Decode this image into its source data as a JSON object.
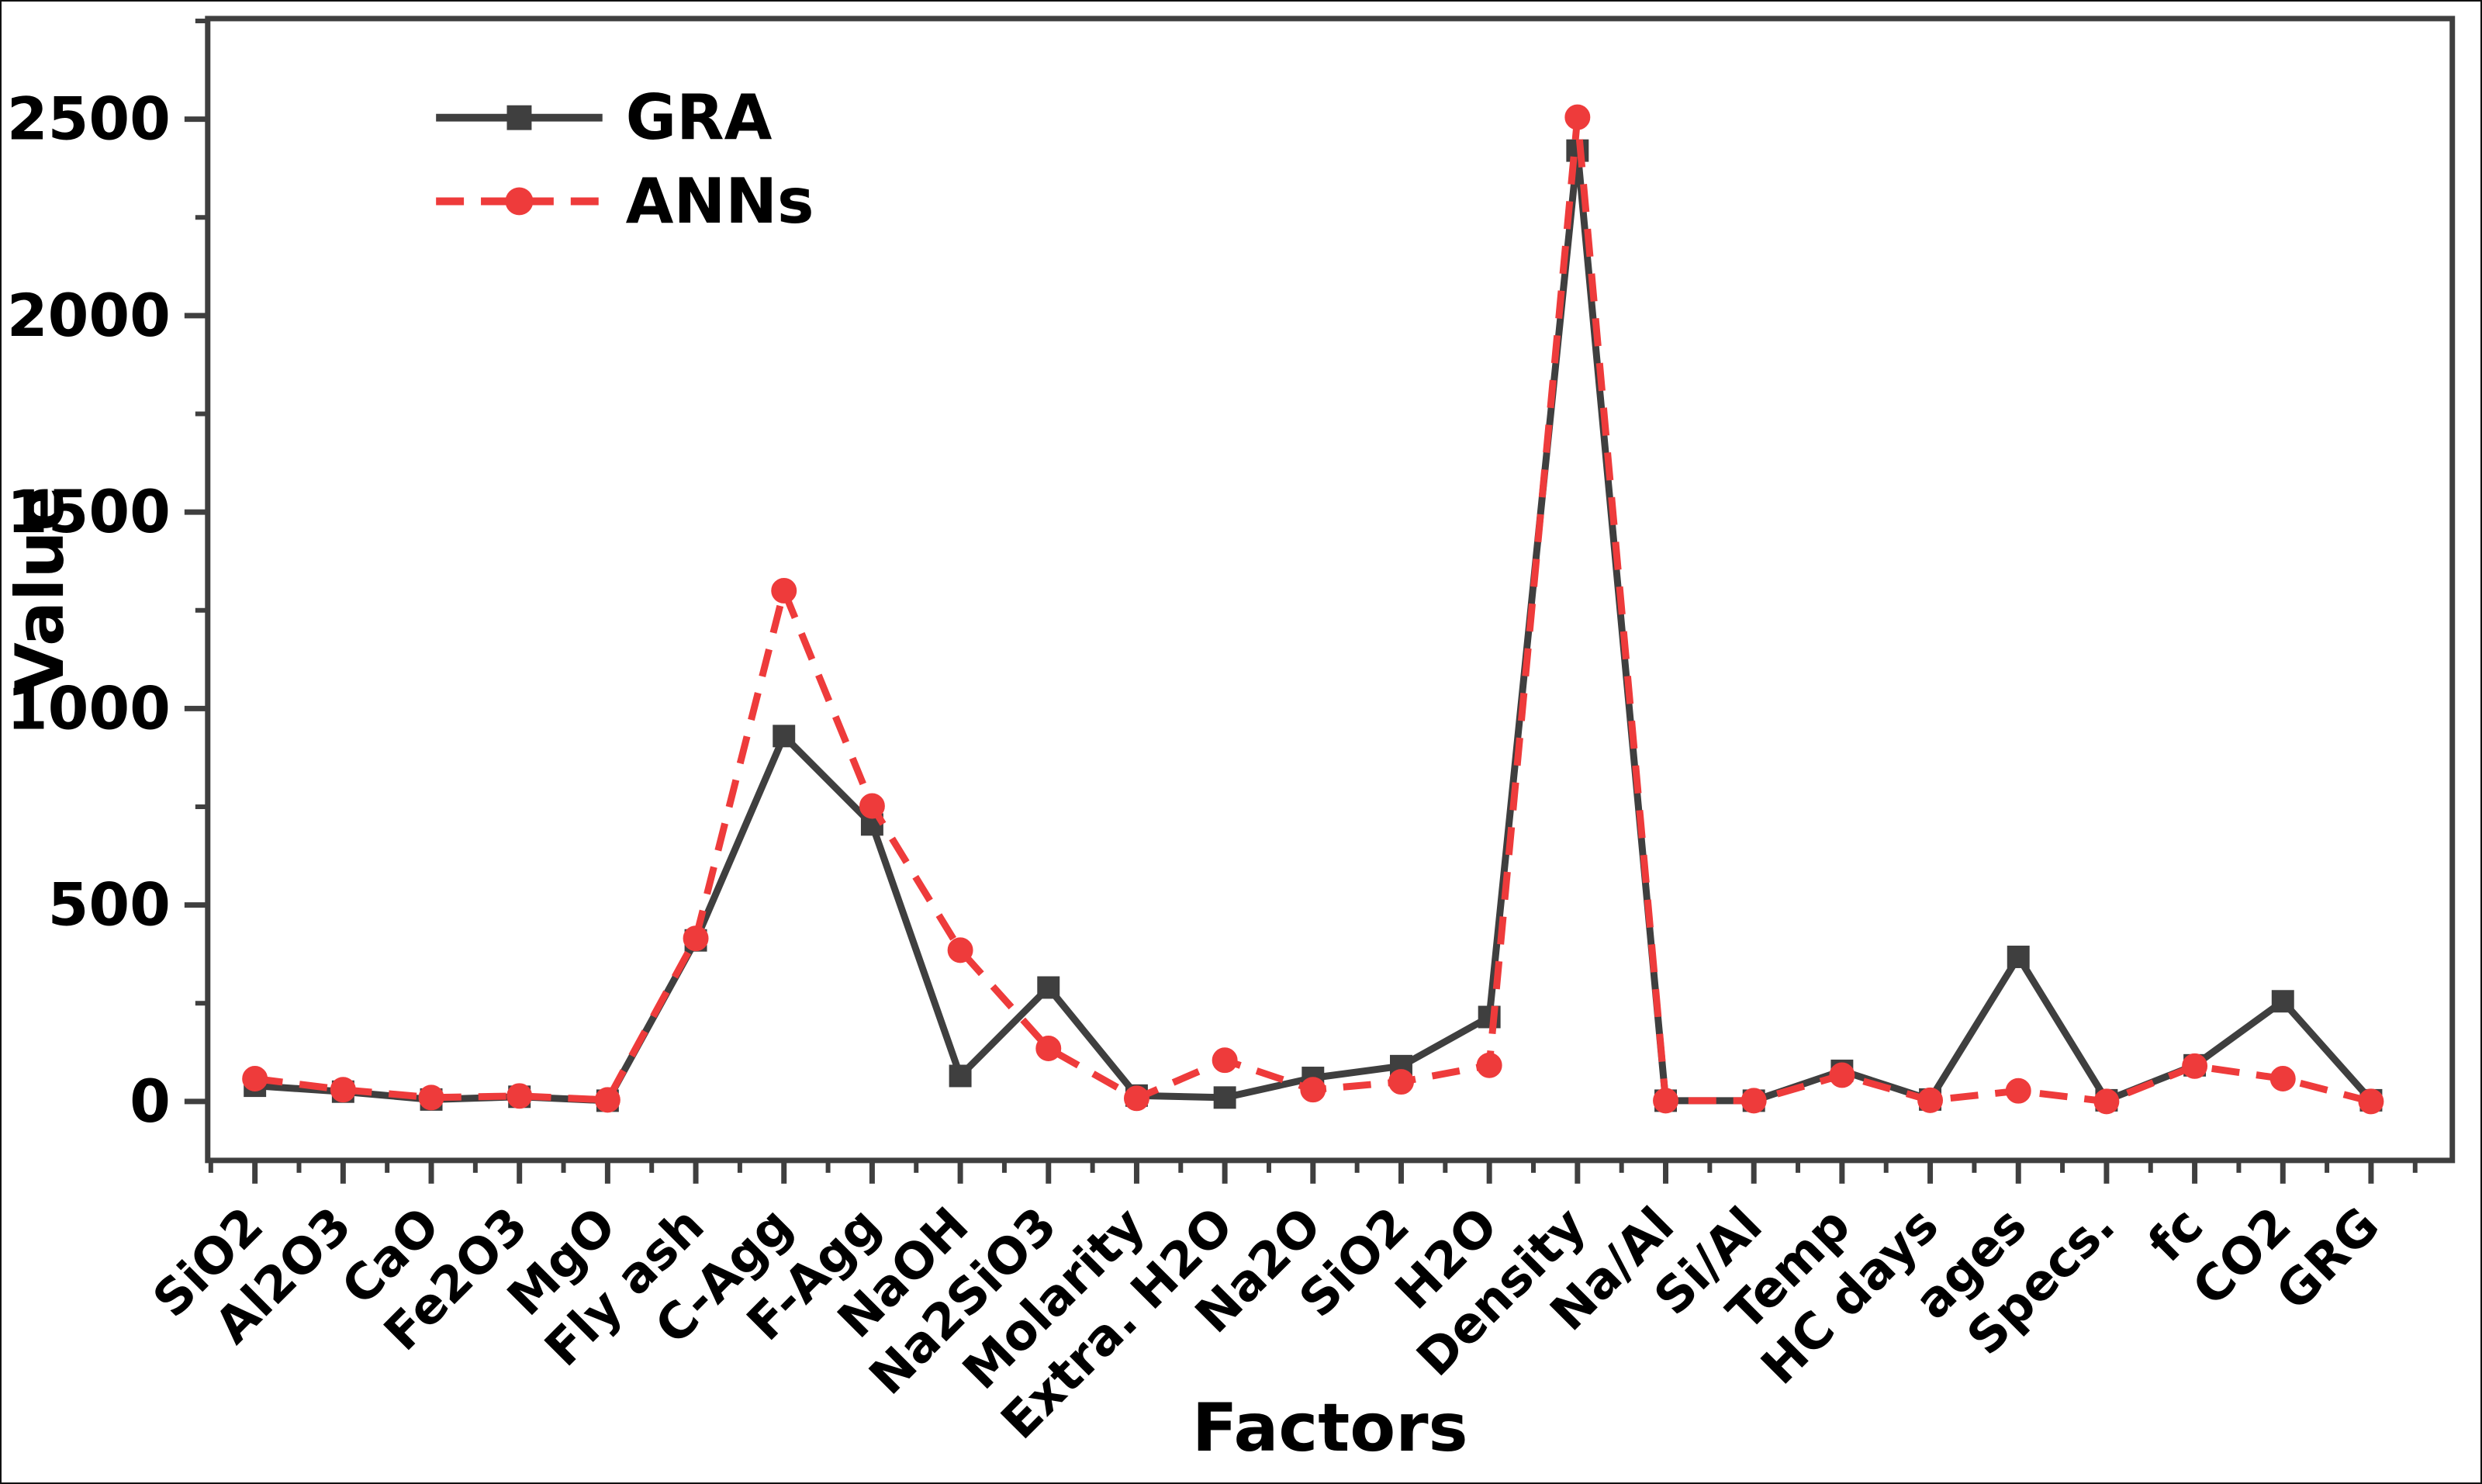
{
  "figure": {
    "background": "#ffffff",
    "frame_color": "#3f3f3f",
    "text_color": "#000000"
  },
  "chart_data": {
    "type": "line",
    "title": "",
    "xlabel": "Factors",
    "ylabel": "Value",
    "grid": false,
    "legend_position": "top-left",
    "categories": [
      "SiO2",
      "Al2O3",
      "CaO",
      "Fe2O3",
      "MgO",
      "Fly ash",
      "C-Agg",
      "F-Agg",
      "NaOH",
      "Na2SiO3",
      "Molarity",
      "Extra. H2O",
      "Na2O",
      "SiO2",
      "H2O",
      "Density",
      "Na/Al",
      "Si/Al",
      "Temp",
      "HC days",
      "ages",
      "Specs.",
      "fc",
      "CO2",
      "GRG"
    ],
    "series": [
      {
        "name": "GRA",
        "color": "#3f3f3f",
        "line_style": "solid",
        "marker": "square",
        "values": [
          40,
          25,
          5,
          12,
          2,
          410,
          930,
          705,
          65,
          290,
          15,
          10,
          60,
          90,
          215,
          2420,
          2,
          2,
          78,
          5,
          368,
          3,
          92,
          255,
          3
        ]
      },
      {
        "name": "ANNs",
        "color": "#ee3b3b",
        "line_style": "dashed",
        "marker": "circle",
        "values": [
          58,
          30,
          10,
          14,
          4,
          415,
          1300,
          752,
          385,
          135,
          8,
          105,
          30,
          50,
          92,
          2505,
          2,
          2,
          67,
          3,
          27,
          0,
          90,
          58,
          0
        ]
      }
    ],
    "yticks": [
      0,
      500,
      1000,
      1500,
      2000,
      2500
    ],
    "ytick_minor_step": 250,
    "ylim": [
      -150,
      2756
    ],
    "xlim_categories": [
      0,
      24
    ]
  }
}
